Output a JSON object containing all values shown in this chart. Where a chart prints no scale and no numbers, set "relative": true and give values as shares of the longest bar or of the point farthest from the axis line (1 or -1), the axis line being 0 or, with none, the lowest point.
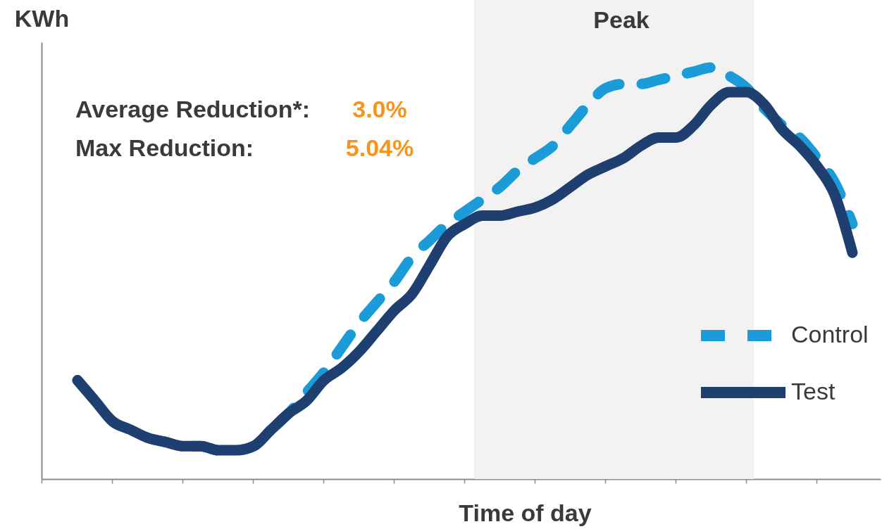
{
  "chart_data": {
    "type": "line",
    "relative": true,
    "ylabel": "KWh",
    "xlabel": "Time of day",
    "tick_labels": false,
    "legend": "bottom right",
    "categories": [
      null,
      null,
      null,
      null,
      null,
      null,
      null,
      null,
      null,
      null,
      null,
      null,
      null,
      null,
      null,
      null,
      null,
      null,
      null,
      null,
      null,
      null,
      null,
      null,
      null,
      null,
      null,
      null,
      null,
      null,
      null,
      null,
      null,
      null,
      null,
      null,
      null,
      null,
      null,
      null,
      null,
      null,
      null,
      null,
      null
    ],
    "series": [
      {
        "name": "Control",
        "color": "#1b9bd7",
        "line_style": "dashed",
        "values": [
          0.24,
          0.19,
          0.14,
          0.12,
          0.1,
          0.09,
          0.08,
          0.08,
          0.07,
          0.07,
          0.08,
          0.12,
          0.16,
          0.21,
          0.26,
          0.32,
          0.38,
          0.43,
          0.48,
          0.54,
          0.58,
          0.62,
          0.65,
          0.68,
          0.71,
          0.75,
          0.78,
          0.81,
          0.86,
          0.91,
          0.95,
          0.96,
          0.96,
          0.97,
          0.98,
          0.99,
          1,
          0.98,
          0.95,
          0.9,
          0.86,
          0.83,
          0.78,
          0.72,
          0.62
        ]
      },
      {
        "name": "Test",
        "color": "#1e3f70",
        "line_style": "solid",
        "values": [
          0.24,
          0.19,
          0.14,
          0.12,
          0.1,
          0.09,
          0.08,
          0.08,
          0.07,
          0.07,
          0.08,
          0.12,
          0.16,
          0.19,
          0.24,
          0.27,
          0.31,
          0.36,
          0.41,
          0.45,
          0.52,
          0.59,
          0.62,
          0.64,
          0.64,
          0.65,
          0.66,
          0.68,
          0.71,
          0.74,
          0.76,
          0.78,
          0.81,
          0.83,
          0.83,
          0.86,
          0.91,
          0.94,
          0.94,
          0.91,
          0.85,
          0.81,
          0.76,
          0.69,
          0.55
        ]
      }
    ],
    "annotations": [
      "Peak",
      "Average Reduction*:",
      "3.0%",
      "Max Reduction:",
      "5.04%"
    ]
  }
}
